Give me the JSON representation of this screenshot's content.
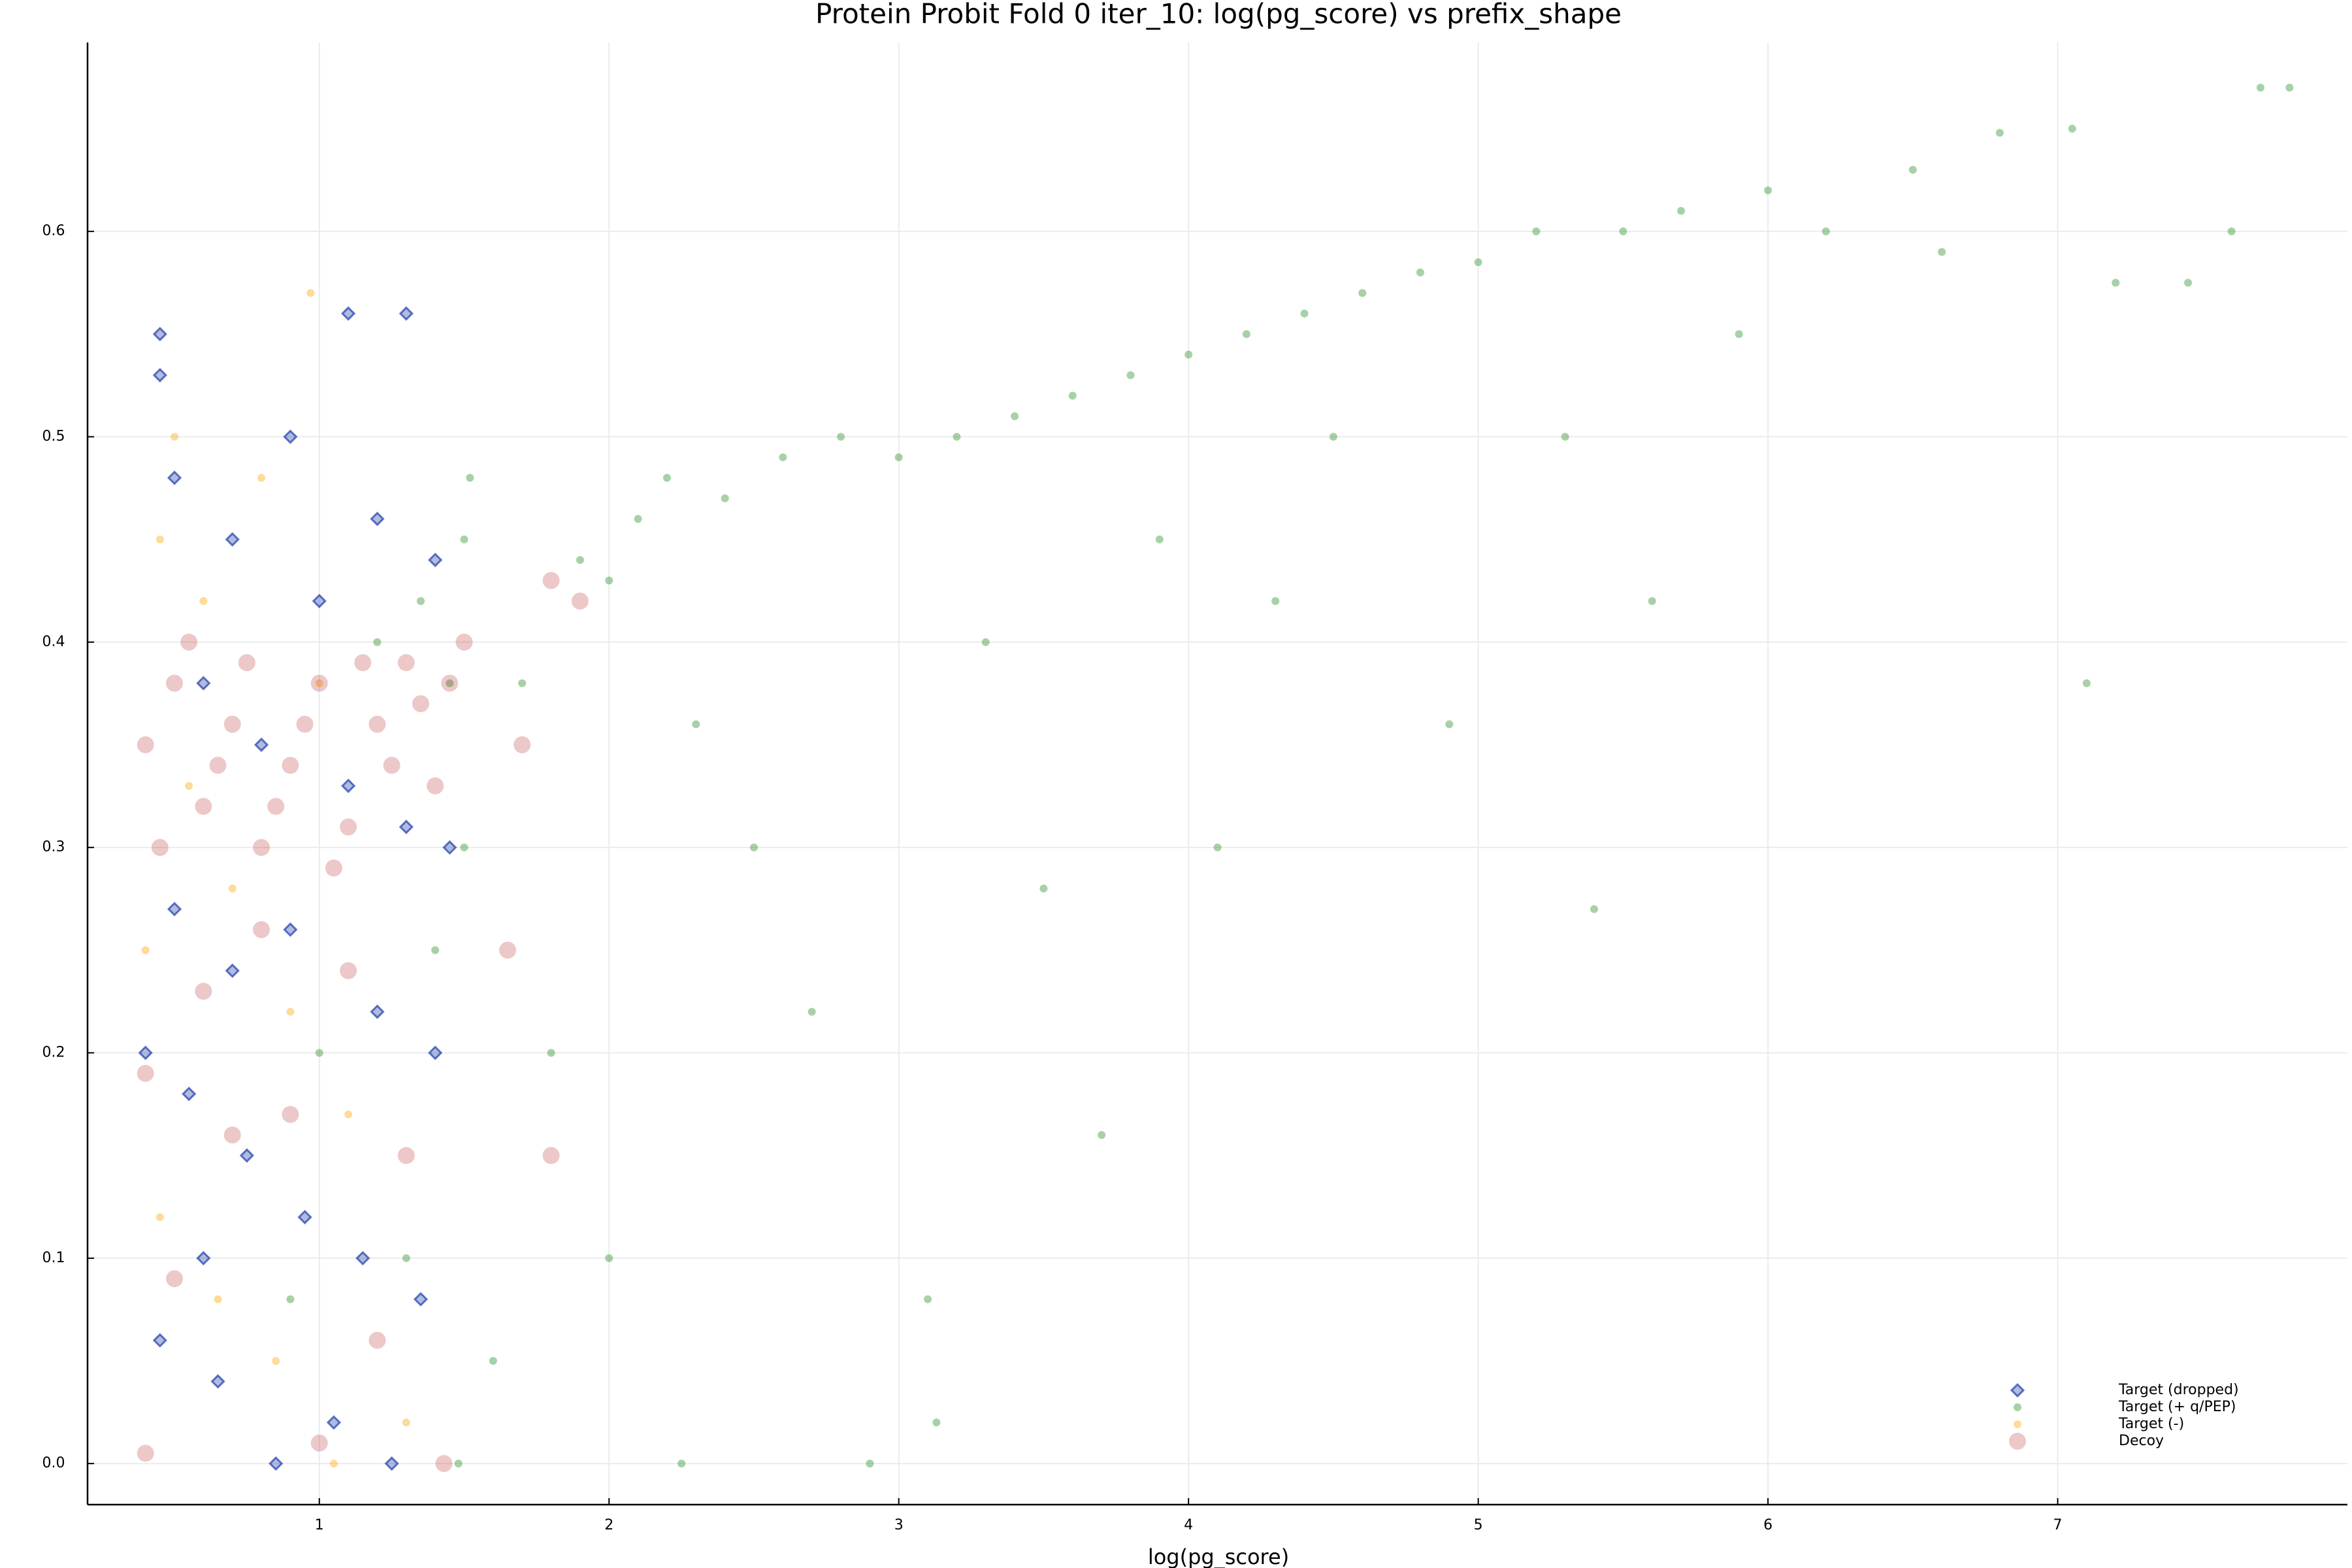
{
  "chart_data": {
    "type": "scatter",
    "title": "Protein Probit Fold 0 iter_10: log(pg_score) vs prefix_shape",
    "x_label": "log(pg_score)",
    "xlim": [
      0.2,
      8.0
    ],
    "ylim": [
      -0.02,
      0.692
    ],
    "xticks": [
      1,
      2,
      3,
      4,
      5,
      6,
      7
    ],
    "yticks": [
      {
        "value": 0,
        "label": "0.0"
      },
      0.1,
      0.2,
      0.3,
      0.4,
      0.5,
      0.6
    ],
    "grid": true,
    "legend": "bottom right",
    "series": [
      {
        "name": "Target (dropped)",
        "color": "#1e3caa",
        "marker": "diamond",
        "x": [
          0.45,
          0.45,
          1.1,
          1.3,
          0.5,
          0.7,
          0.9,
          1.0,
          1.2,
          1.4,
          0.6,
          0.8,
          1.1,
          1.3,
          0.5,
          0.7,
          0.9,
          1.2,
          1.4,
          0.55,
          0.75,
          0.95,
          1.15,
          1.35,
          0.45,
          0.65,
          0.85,
          1.05,
          1.25,
          0.4,
          1.45,
          0.6
        ],
        "y": [
          0.55,
          0.53,
          0.56,
          0.56,
          0.48,
          0.45,
          0.5,
          0.42,
          0.46,
          0.44,
          0.38,
          0.35,
          0.33,
          0.31,
          0.27,
          0.24,
          0.26,
          0.22,
          0.2,
          0.18,
          0.15,
          0.12,
          0.1,
          0.08,
          0.06,
          0.04,
          0.0,
          0.02,
          0.0,
          0.2,
          0.3,
          0.1
        ]
      },
      {
        "name": "Target (+ q/PEP)",
        "color": "#228b22",
        "marker": "circle",
        "x": [
          1.5,
          1.52,
          1.45,
          1.5,
          1.4,
          1.3,
          1.48,
          1.7,
          1.8,
          1.9,
          2.0,
          2.1,
          2.2,
          2.3,
          2.4,
          2.5,
          2.6,
          2.7,
          2.8,
          3.0,
          3.1,
          3.13,
          3.2,
          3.3,
          3.4,
          3.5,
          3.6,
          3.7,
          3.8,
          3.9,
          4.0,
          4.1,
          4.2,
          4.3,
          4.4,
          4.5,
          4.6,
          4.8,
          4.9,
          5.0,
          5.2,
          5.3,
          5.4,
          5.5,
          5.6,
          5.7,
          5.9,
          6.0,
          6.2,
          6.5,
          6.6,
          6.8,
          7.05,
          7.1,
          7.2,
          7.45,
          7.6,
          7.7,
          7.8,
          2.9,
          2.0,
          1.6,
          2.25,
          1.2,
          1.35,
          1.0,
          0.9
        ],
        "y": [
          0.45,
          0.48,
          0.38,
          0.3,
          0.25,
          0.1,
          0.0,
          0.38,
          0.2,
          0.44,
          0.43,
          0.46,
          0.48,
          0.36,
          0.47,
          0.3,
          0.49,
          0.22,
          0.5,
          0.49,
          0.08,
          0.02,
          0.5,
          0.4,
          0.51,
          0.28,
          0.52,
          0.16,
          0.53,
          0.45,
          0.54,
          0.3,
          0.55,
          0.42,
          0.56,
          0.5,
          0.57,
          0.58,
          0.36,
          0.585,
          0.6,
          0.5,
          0.27,
          0.6,
          0.42,
          0.61,
          0.55,
          0.62,
          0.6,
          0.63,
          0.59,
          0.648,
          0.65,
          0.38,
          0.575,
          0.575,
          0.6,
          0.67,
          0.67,
          0.0,
          0.1,
          0.05,
          0.0,
          0.4,
          0.42,
          0.2,
          0.08
        ]
      },
      {
        "name": "Target (-)",
        "color": "#ffa500",
        "marker": "circle",
        "x": [
          0.97,
          0.5,
          0.45,
          0.6,
          0.8,
          1.0,
          0.55,
          0.7,
          0.9,
          1.1,
          0.45,
          0.65,
          0.85,
          1.05,
          1.3,
          0.4
        ],
        "y": [
          0.57,
          0.5,
          0.45,
          0.42,
          0.48,
          0.38,
          0.33,
          0.28,
          0.22,
          0.17,
          0.12,
          0.08,
          0.05,
          0.0,
          0.02,
          0.25
        ]
      },
      {
        "name": "Decoy",
        "color": "#b22222",
        "marker": "circle-large",
        "x": [
          0.4,
          0.5,
          0.6,
          0.7,
          0.8,
          0.9,
          1.0,
          1.1,
          1.2,
          1.3,
          1.4,
          1.5,
          0.45,
          0.55,
          0.65,
          0.75,
          0.85,
          0.95,
          1.05,
          1.15,
          1.25,
          1.35,
          1.45,
          0.4,
          0.9,
          0.6,
          1.8,
          1.7,
          1.9,
          0.4,
          1.43,
          0.7,
          0.5,
          1.2,
          1.0,
          1.3,
          1.8,
          1.65,
          0.8,
          1.1
        ],
        "y": [
          0.35,
          0.38,
          0.32,
          0.36,
          0.3,
          0.34,
          0.38,
          0.31,
          0.36,
          0.39,
          0.33,
          0.4,
          0.3,
          0.4,
          0.34,
          0.39,
          0.32,
          0.36,
          0.29,
          0.39,
          0.34,
          0.37,
          0.38,
          0.19,
          0.17,
          0.23,
          0.43,
          0.35,
          0.42,
          0.005,
          0.0,
          0.16,
          0.09,
          0.06,
          0.01,
          0.15,
          0.15,
          0.25,
          0.26,
          0.24
        ]
      }
    ]
  }
}
